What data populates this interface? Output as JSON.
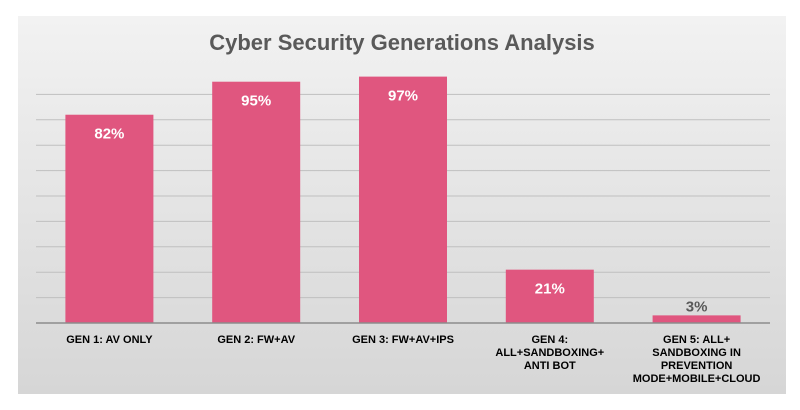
{
  "chart_data": {
    "type": "bar",
    "title": "Cyber Security Generations Analysis",
    "categories": [
      [
        "GEN 1: AV ONLY"
      ],
      [
        "GEN 2: FW+AV"
      ],
      [
        "GEN 3: FW+AV+IPS"
      ],
      [
        "GEN 4:",
        "ALL+SANDBOXING+",
        "ANTI BOT"
      ],
      [
        "GEN 5: ALL+",
        "SANDBOXING IN",
        "PREVENTION",
        "MODE+MOBILE+CLOUD"
      ]
    ],
    "values": [
      82,
      95,
      97,
      21,
      3
    ],
    "data_labels": [
      "82%",
      "95%",
      "97%",
      "21%",
      "3%"
    ],
    "ylim": [
      0,
      100
    ],
    "grid": true,
    "legend": "none",
    "colors": {
      "bar": "#e0567f",
      "label_inside": "#ffffff",
      "label_outside": "#595959",
      "grid": "#bfbfbf",
      "axis": "#8c8c8c"
    }
  }
}
